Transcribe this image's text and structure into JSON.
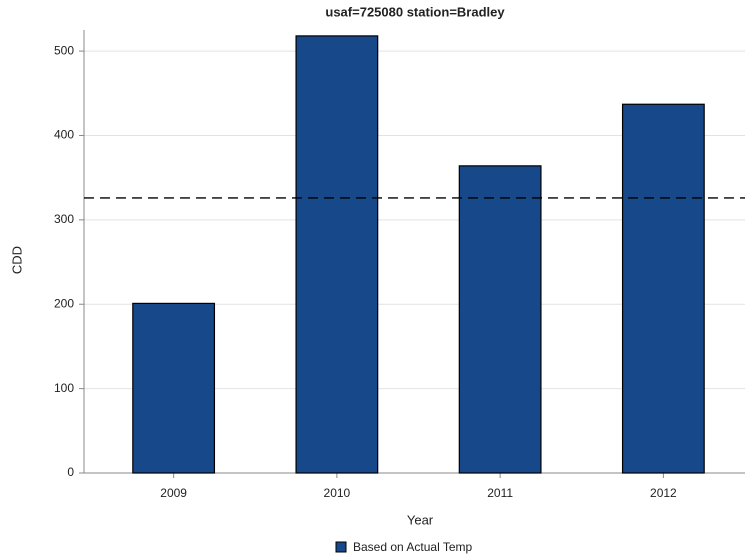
{
  "chart_data": {
    "type": "bar",
    "title": "usaf=725080 station=Bradley",
    "categories": [
      "2009",
      "2010",
      "2011",
      "2012"
    ],
    "values": [
      201,
      518,
      364,
      437
    ],
    "color": "#17488a",
    "series_name": "Based on Actual Temp",
    "ylim": [
      0,
      525
    ],
    "yticks": [
      0,
      100,
      200,
      300,
      400,
      500
    ],
    "grid": true,
    "x_label": "Year",
    "y_label": "CDD",
    "reference_line": 326
  }
}
